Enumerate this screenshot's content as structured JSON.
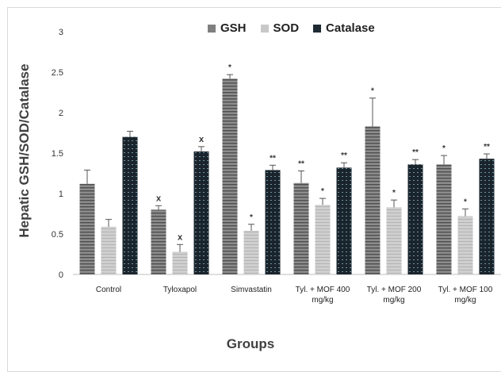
{
  "chart_data": {
    "type": "bar",
    "title": "",
    "xlabel": "Groups",
    "ylabel": "Hepatic GSH/SOD/Catalase",
    "ylim": [
      0,
      3
    ],
    "yticks": [
      "0",
      "0.5",
      "1",
      "1.5",
      "2",
      "2.5",
      "3"
    ],
    "grid": false,
    "legend_position": "top",
    "categories": [
      [
        "Control"
      ],
      [
        "Tyloxapol"
      ],
      [
        "Simvastatin"
      ],
      [
        "Tyl. + MOF 400",
        "mg/kg"
      ],
      [
        "Tyl. + MOF 200",
        "mg/kg"
      ],
      [
        "Tyl. + MOF 100",
        "mg/kg"
      ]
    ],
    "series": [
      {
        "name": "GSH",
        "color": "#7f7f7f",
        "values": [
          1.12,
          0.8,
          2.42,
          1.13,
          1.83,
          1.36
        ],
        "errors": [
          0.17,
          0.05,
          0.05,
          0.15,
          0.35,
          0.11
        ],
        "marks": [
          "",
          "x",
          "*",
          "**",
          "*",
          "*"
        ]
      },
      {
        "name": "SOD",
        "color": "#c8c8c8",
        "values": [
          0.59,
          0.28,
          0.54,
          0.86,
          0.83,
          0.72
        ],
        "errors": [
          0.09,
          0.09,
          0.08,
          0.08,
          0.09,
          0.09
        ],
        "marks": [
          "",
          "x",
          "*",
          "*",
          "*",
          "*"
        ]
      },
      {
        "name": "Catalase",
        "color": "#1f2a33",
        "values": [
          1.7,
          1.52,
          1.29,
          1.32,
          1.36,
          1.43
        ],
        "errors": [
          0.07,
          0.06,
          0.06,
          0.06,
          0.06,
          0.06
        ],
        "marks": [
          "",
          "x",
          "**",
          "**",
          "**",
          "**"
        ]
      }
    ]
  }
}
